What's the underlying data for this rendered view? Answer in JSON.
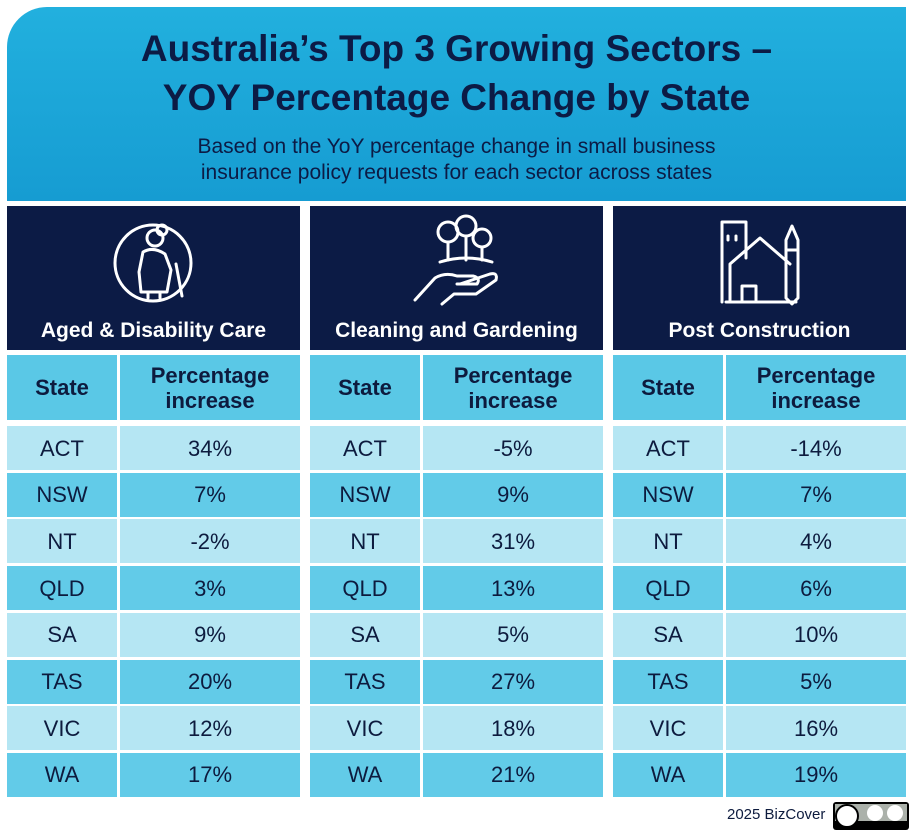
{
  "header": {
    "title": [
      "Australia’s Top 3 Growing Sectors –",
      "YOY Percentage Change by State"
    ],
    "subtitle": [
      "Based on the YoY percentage change in small business",
      "insurance policy requests for each sector across states"
    ]
  },
  "table": {
    "columns": [
      "State",
      "Percentage increase"
    ],
    "sectors": [
      {
        "name": "Aged & Disability Care",
        "rows": [
          [
            "ACT",
            "34%"
          ],
          [
            "NSW",
            "7%"
          ],
          [
            "NT",
            "-2%"
          ],
          [
            "QLD",
            "3%"
          ],
          [
            "SA",
            "9%"
          ],
          [
            "TAS",
            "20%"
          ],
          [
            "VIC",
            "12%"
          ],
          [
            "WA",
            "17%"
          ]
        ]
      },
      {
        "name": "Cleaning and Gardening",
        "rows": [
          [
            "ACT",
            "-5%"
          ],
          [
            "NSW",
            "9%"
          ],
          [
            "NT",
            "31%"
          ],
          [
            "QLD",
            "13%"
          ],
          [
            "SA",
            "5%"
          ],
          [
            "TAS",
            "27%"
          ],
          [
            "VIC",
            "18%"
          ],
          [
            "WA",
            "21%"
          ]
        ]
      },
      {
        "name": "Post Construction",
        "rows": [
          [
            "ACT",
            "-14%"
          ],
          [
            "NSW",
            "7%"
          ],
          [
            "NT",
            "4%"
          ],
          [
            "QLD",
            "6%"
          ],
          [
            "SA",
            "10%"
          ],
          [
            "TAS",
            "5%"
          ],
          [
            "VIC",
            "16%"
          ],
          [
            "WA",
            "19%"
          ]
        ]
      }
    ]
  },
  "footer": {
    "credit": "2025 BizCover"
  }
}
